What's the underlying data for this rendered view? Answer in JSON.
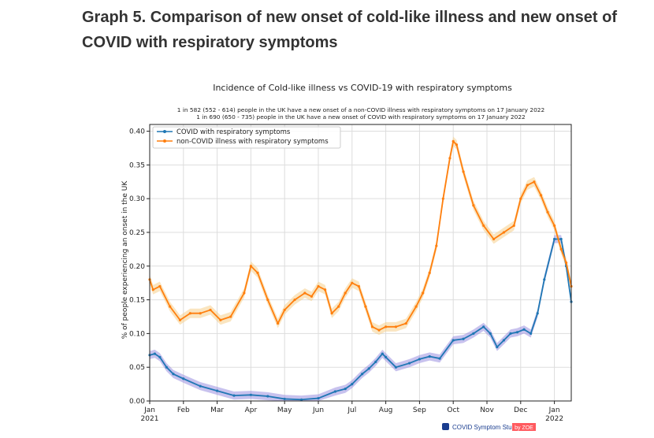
{
  "heading": "Graph 5. Comparison of new onset of cold-like illness and new onset of COVID with respiratory symptoms",
  "footer": {
    "study_name": "COVID Symptom Study",
    "by_label": "by ZOE"
  },
  "chart_data": {
    "type": "line",
    "title": "Incidence of Cold-like illness vs COVID-19 with respiratory symptoms",
    "subtitle_lines": [
      "1 in 582 (552 - 614) people in the UK have a new onset of a non-COVID illness with respiratory symptoms on 17 January 2022",
      "1 in 690 (650 - 735) people in the UK have a new onset of COVID with respiratory symptoms on 17 January 2022"
    ],
    "ylabel": "% of people experiencing an onset in the UK",
    "ylim": [
      0,
      0.41
    ],
    "yticks": [
      "0.00",
      "0.05",
      "0.10",
      "0.15",
      "0.20",
      "0.25",
      "0.30",
      "0.35",
      "0.40"
    ],
    "ytick_values": [
      0,
      0.05,
      0.1,
      0.15,
      0.2,
      0.25,
      0.3,
      0.35,
      0.4
    ],
    "xlim": [
      0,
      12.5
    ],
    "xticks": [
      {
        "pos": 0,
        "label": "Jan",
        "sub": "2021"
      },
      {
        "pos": 1,
        "label": "Feb",
        "sub": ""
      },
      {
        "pos": 2,
        "label": "Mar",
        "sub": ""
      },
      {
        "pos": 3,
        "label": "Apr",
        "sub": ""
      },
      {
        "pos": 4,
        "label": "May",
        "sub": ""
      },
      {
        "pos": 5,
        "label": "Jun",
        "sub": ""
      },
      {
        "pos": 6,
        "label": "Jul",
        "sub": ""
      },
      {
        "pos": 7,
        "label": "Aug",
        "sub": ""
      },
      {
        "pos": 8,
        "label": "Sep",
        "sub": ""
      },
      {
        "pos": 9,
        "label": "Oct",
        "sub": ""
      },
      {
        "pos": 10,
        "label": "Nov",
        "sub": ""
      },
      {
        "pos": 11,
        "label": "Dec",
        "sub": ""
      },
      {
        "pos": 12,
        "label": "Jan",
        "sub": "2022"
      }
    ],
    "grid": true,
    "legend_position": "top-left",
    "series": [
      {
        "name": "COVID with respiratory symptoms",
        "color": "#1f77b4",
        "band_color": "#9b8fe0",
        "x": [
          0,
          0.15,
          0.3,
          0.5,
          0.7,
          1,
          1.5,
          2,
          2.5,
          3,
          3.5,
          4,
          4.5,
          5,
          5.5,
          5.8,
          6,
          6.3,
          6.5,
          6.7,
          6.9,
          7,
          7.3,
          7.7,
          8,
          8.3,
          8.6,
          9,
          9.3,
          9.6,
          9.9,
          10.1,
          10.3,
          10.5,
          10.7,
          10.9,
          11.1,
          11.3,
          11.5,
          11.7,
          12,
          12.2,
          12.35,
          12.5
        ],
        "values": [
          0.068,
          0.07,
          0.065,
          0.05,
          0.04,
          0.033,
          0.022,
          0.015,
          0.008,
          0.009,
          0.007,
          0.003,
          0.002,
          0.004,
          0.014,
          0.018,
          0.025,
          0.04,
          0.048,
          0.058,
          0.07,
          0.065,
          0.05,
          0.056,
          0.062,
          0.066,
          0.063,
          0.09,
          0.092,
          0.1,
          0.11,
          0.1,
          0.08,
          0.09,
          0.1,
          0.102,
          0.106,
          0.1,
          0.13,
          0.18,
          0.24,
          0.24,
          0.2,
          0.147
        ],
        "band_halfwidth": 0.006
      },
      {
        "name": "non-COVID illness with respiratory symptoms",
        "color": "#ff7f0e",
        "band_color": "#f6cf8c",
        "x": [
          0,
          0.1,
          0.3,
          0.6,
          0.9,
          1.2,
          1.5,
          1.8,
          2.1,
          2.4,
          2.8,
          3,
          3.2,
          3.5,
          3.8,
          4,
          4.3,
          4.6,
          4.8,
          5,
          5.2,
          5.4,
          5.6,
          5.8,
          6,
          6.2,
          6.4,
          6.6,
          6.8,
          7,
          7.3,
          7.6,
          7.9,
          8.1,
          8.3,
          8.5,
          8.7,
          8.9,
          9,
          9.1,
          9.3,
          9.6,
          9.9,
          10.2,
          10.5,
          10.8,
          11,
          11.2,
          11.4,
          11.6,
          11.8,
          12,
          12.2,
          12.35,
          12.5
        ],
        "values": [
          0.18,
          0.165,
          0.17,
          0.14,
          0.12,
          0.13,
          0.13,
          0.135,
          0.12,
          0.125,
          0.16,
          0.2,
          0.19,
          0.15,
          0.115,
          0.135,
          0.15,
          0.16,
          0.155,
          0.17,
          0.165,
          0.13,
          0.14,
          0.16,
          0.175,
          0.17,
          0.14,
          0.11,
          0.105,
          0.11,
          0.11,
          0.115,
          0.14,
          0.16,
          0.19,
          0.23,
          0.3,
          0.36,
          0.385,
          0.38,
          0.34,
          0.29,
          0.26,
          0.24,
          0.25,
          0.26,
          0.3,
          0.32,
          0.325,
          0.305,
          0.28,
          0.26,
          0.225,
          0.205,
          0.17
        ],
        "band_halfwidth": 0.007
      }
    ]
  }
}
